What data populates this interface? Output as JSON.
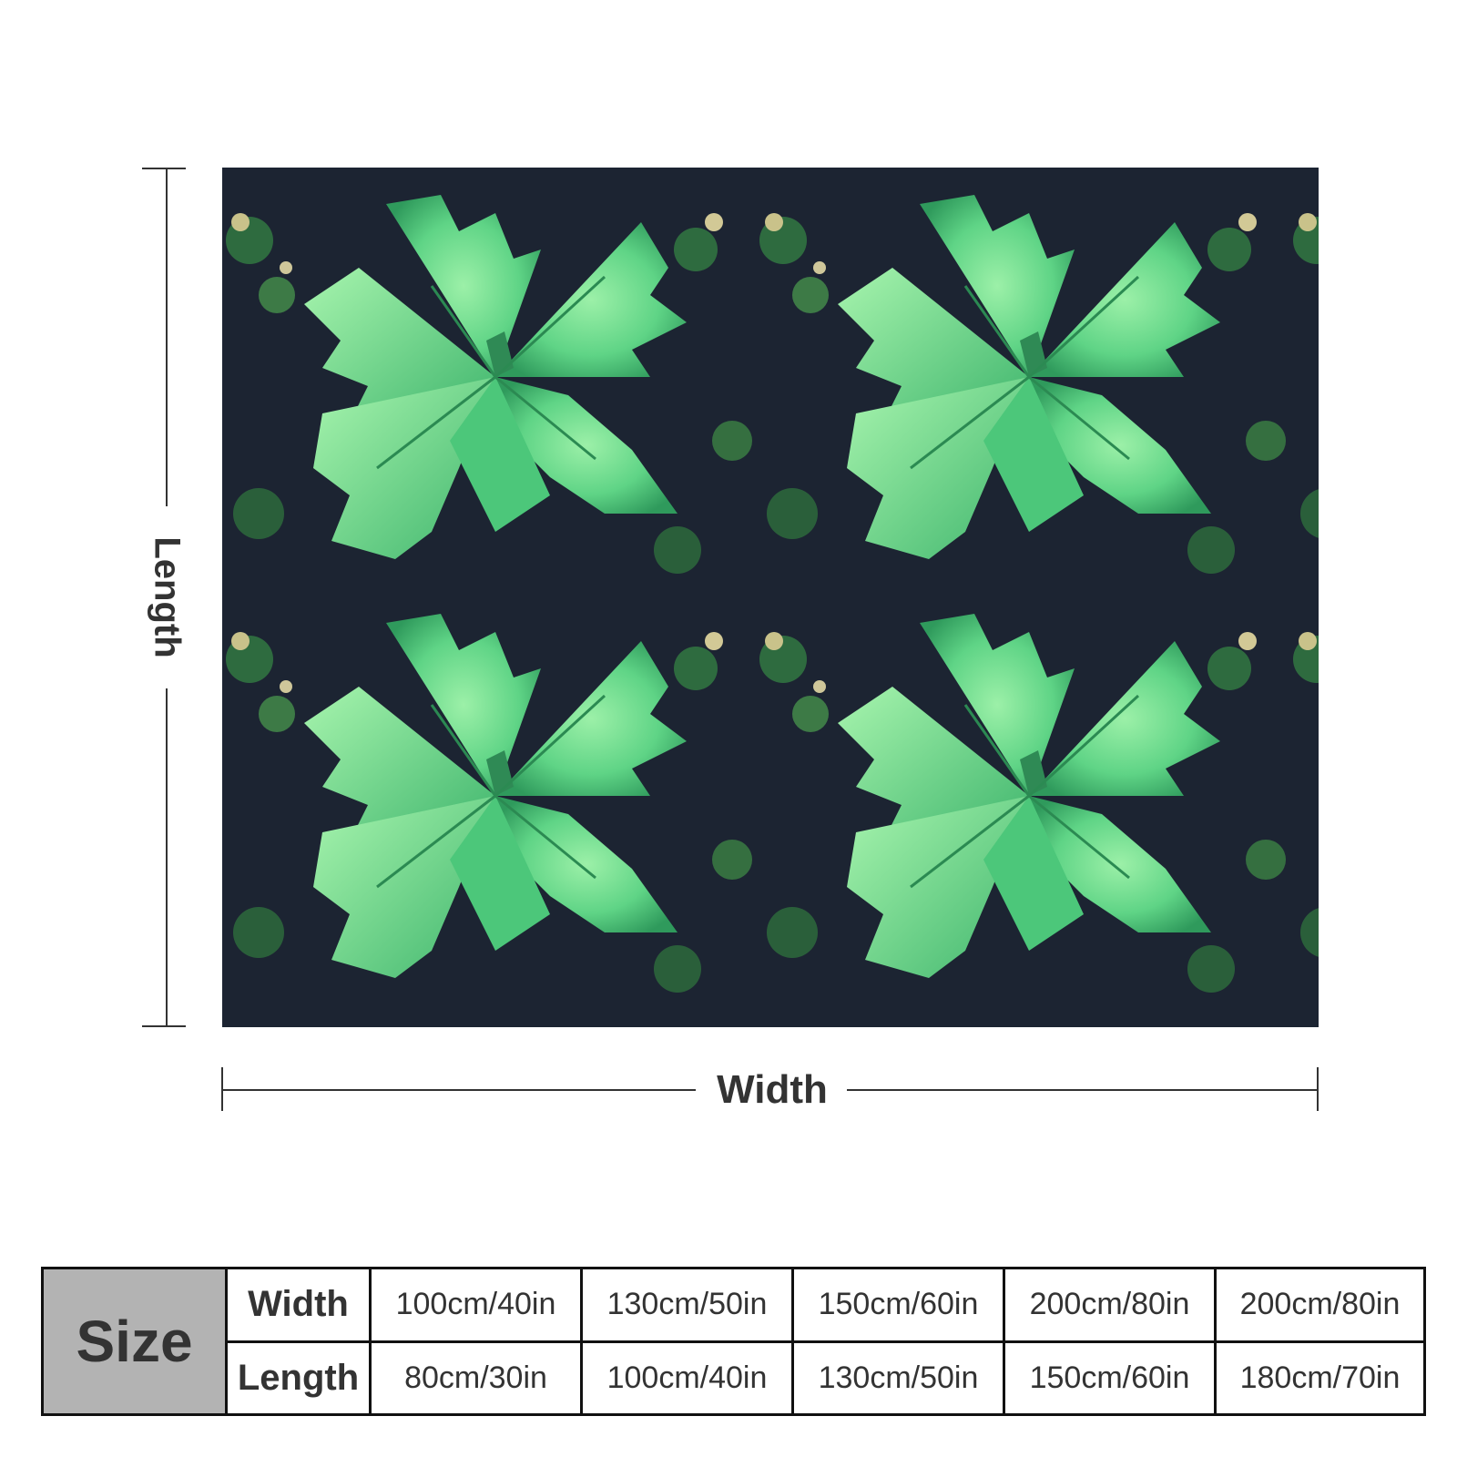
{
  "dimensions": {
    "length_label": "Length",
    "width_label": "Width"
  },
  "product_image": {
    "icon": "nettle-leaves-pattern-image",
    "colors": {
      "leaf_light": "#8fe8a0",
      "leaf_mid": "#4fcf7a",
      "leaf_dark": "#1f8a4f",
      "background_dark": "#1a2330"
    }
  },
  "size_table": {
    "header": "Size",
    "rows": [
      {
        "label": "Width",
        "values": [
          "100cm/40in",
          "130cm/50in",
          "150cm/60in",
          "200cm/80in",
          "200cm/80in"
        ]
      },
      {
        "label": "Length",
        "values": [
          "80cm/30in",
          "100cm/40in",
          "130cm/50in",
          "150cm/60in",
          "180cm/70in"
        ]
      }
    ]
  }
}
